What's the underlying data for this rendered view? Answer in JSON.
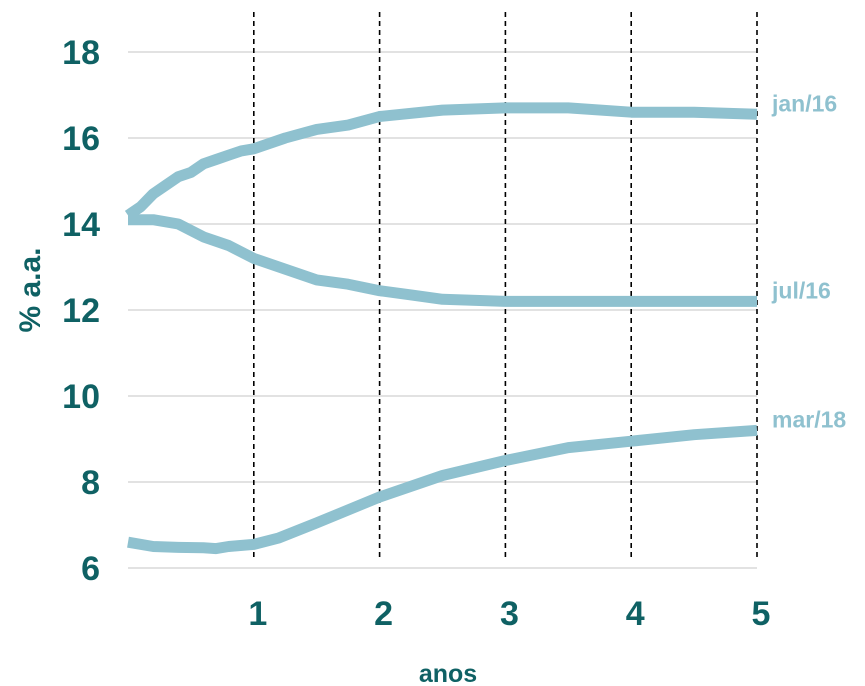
{
  "chart_data": {
    "type": "line",
    "xlabel": "anos",
    "ylabel": "% a.a.",
    "xlim": [
      0,
      5
    ],
    "ylim": [
      6,
      18
    ],
    "xticks": [
      1,
      2,
      3,
      4,
      5
    ],
    "yticks": [
      6,
      8,
      10,
      12,
      14,
      16,
      18
    ],
    "grid": {
      "horizontal": true,
      "vertical_dashed": true
    },
    "legend": "inline-right",
    "colors": {
      "series": "#8fc1cf",
      "axis_text": "#0f6164",
      "grid": "#d9d9d9",
      "dashed": "#000000"
    },
    "series": [
      {
        "name": "jan/16",
        "x": [
          0,
          0.1,
          0.2,
          0.3,
          0.4,
          0.5,
          0.6,
          0.7,
          0.8,
          0.9,
          1.0,
          1.25,
          1.5,
          1.75,
          2.0,
          2.5,
          3.0,
          3.5,
          4.0,
          4.5,
          5.0
        ],
        "y": [
          14.2,
          14.4,
          14.7,
          14.9,
          15.1,
          15.2,
          15.4,
          15.5,
          15.6,
          15.7,
          15.75,
          16.0,
          16.2,
          16.3,
          16.5,
          16.65,
          16.7,
          16.7,
          16.6,
          16.6,
          16.55
        ]
      },
      {
        "name": "jul/16",
        "x": [
          0,
          0.2,
          0.4,
          0.6,
          0.8,
          1.0,
          1.25,
          1.5,
          1.75,
          2.0,
          2.25,
          2.5,
          3.0,
          3.5,
          4.0,
          4.5,
          5.0
        ],
        "y": [
          14.1,
          14.1,
          14.0,
          13.7,
          13.5,
          13.2,
          12.95,
          12.7,
          12.6,
          12.45,
          12.35,
          12.25,
          12.2,
          12.2,
          12.2,
          12.2,
          12.2
        ]
      },
      {
        "name": "mar/18",
        "x": [
          0,
          0.2,
          0.4,
          0.6,
          0.7,
          0.8,
          1.0,
          1.2,
          1.5,
          2.0,
          2.5,
          3.0,
          3.5,
          4.0,
          4.5,
          5.0
        ],
        "y": [
          6.6,
          6.5,
          6.48,
          6.47,
          6.45,
          6.5,
          6.55,
          6.7,
          7.05,
          7.65,
          8.15,
          8.5,
          8.8,
          8.95,
          9.1,
          9.2
        ]
      }
    ]
  }
}
